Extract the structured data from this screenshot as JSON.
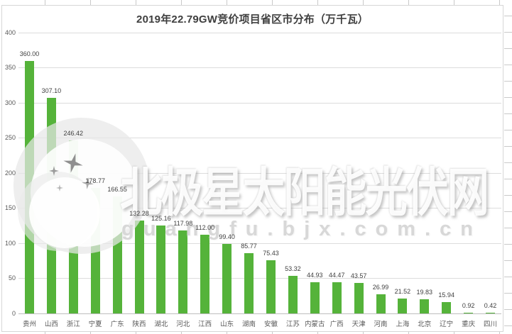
{
  "chart_data": {
    "type": "bar",
    "title": "2019年22.79GW竞价项目省区市分布（万千瓦）",
    "categories": [
      "贵州",
      "山西",
      "浙江",
      "宁夏",
      "广东",
      "陕西",
      "湖北",
      "河北",
      "江西",
      "山东",
      "湖南",
      "安徽",
      "江苏",
      "内蒙古",
      "广西",
      "天津",
      "河南",
      "上海",
      "北京",
      "辽宁",
      "重庆",
      "四川"
    ],
    "values": [
      360.0,
      307.1,
      246.42,
      178.77,
      166.55,
      132.28,
      125.16,
      117.98,
      112.0,
      99.4,
      85.77,
      75.43,
      53.32,
      44.93,
      44.47,
      43.57,
      26.99,
      21.52,
      19.83,
      15.94,
      0.92,
      0.42
    ],
    "value_labels": [
      "360.00",
      "307.10",
      "246.42",
      "178.77",
      "166.55",
      "132.28",
      "125.16",
      "117.98",
      "112.00",
      "99.40",
      "85.77",
      "75.43",
      "53.32",
      "44.93",
      "44.47",
      "43.57",
      "26.99",
      "21.52",
      "19.83",
      "15.94",
      "0.92",
      "0.42"
    ],
    "xlabel": "",
    "ylabel": "",
    "ylim": [
      0,
      400
    ],
    "yticks": [
      0,
      50,
      100,
      150,
      200,
      250,
      300,
      350,
      400
    ],
    "grid": true,
    "legend": false,
    "bar_color": "#55B33A",
    "gridline_color": "#DCDCDC",
    "axis_line_color": "#BFBFBF",
    "axis_label_color": "#595959",
    "data_label_color": "#404040",
    "title_color": "#3F3F3F"
  },
  "watermark": {
    "brand_text": "北极星太阳能光伏网",
    "url_text": "guangfu.bjx.com.cn",
    "logo": "crescent-moon-with-sparkle-stars"
  }
}
